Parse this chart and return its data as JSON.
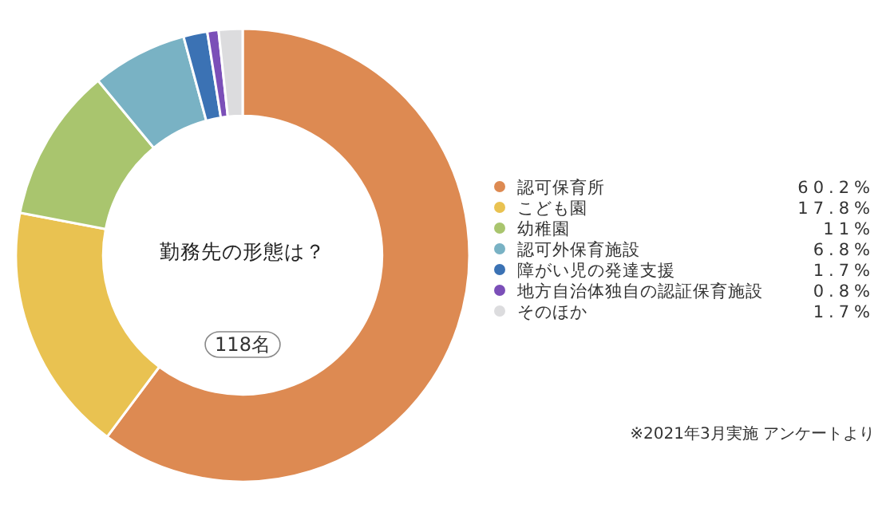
{
  "chart_data": {
    "type": "donut",
    "title": "勤務先の形態は？",
    "subtitle": "118名",
    "categories": [
      "認可保育所",
      "こども園",
      "幼稚園",
      "認可外保育施設",
      "障がい児の発達支援",
      "地方自治体独自の認証保育施設",
      "そのほか"
    ],
    "values": [
      60.2,
      17.8,
      11,
      6.8,
      1.7,
      0.8,
      1.7
    ],
    "colors": [
      "#dd8a52",
      "#e9c251",
      "#a9c56e",
      "#79b2c4",
      "#3b72b4",
      "#7b4fb8",
      "#dcdcde"
    ],
    "value_labels": [
      "60.2%",
      "17.8%",
      "11%",
      "6.8%",
      "1.7%",
      "0.8%",
      "1.7%"
    ],
    "legend": "right",
    "annotations": [
      "※2021年3月実施 アンケートより"
    ]
  }
}
